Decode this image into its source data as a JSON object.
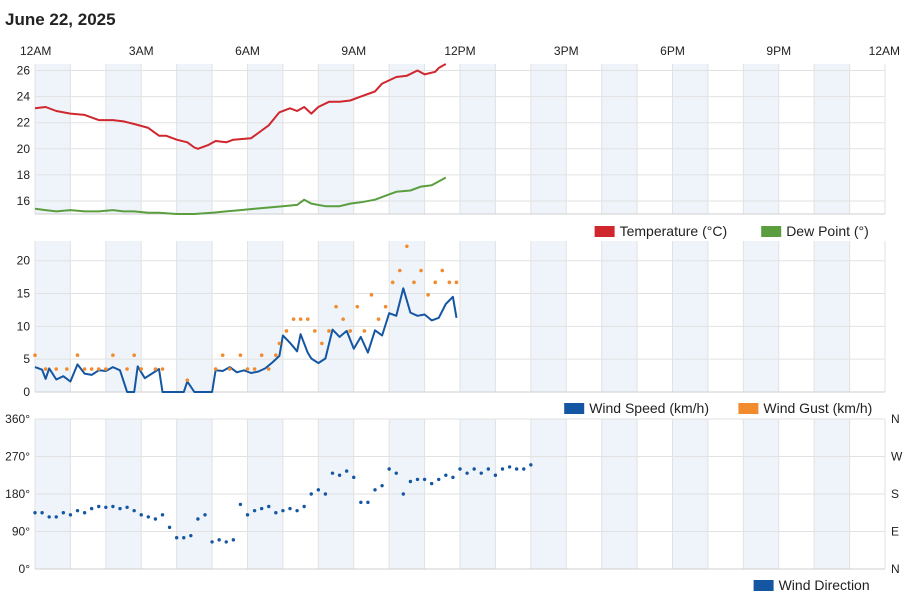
{
  "title": "June 22, 2025",
  "colors": {
    "band": "#eef4fa",
    "grid": "#e2e2e2",
    "temperature": "#d0262d",
    "dew_point": "#5a9e3f",
    "wind_speed": "#1556a3",
    "wind_gust": "#f28a2e",
    "wind_direction": "#1556a3"
  },
  "chart_data": [
    {
      "type": "line",
      "name": "temperature-dewpoint",
      "x_unit": "hours",
      "x_ticks": [
        0,
        3,
        6,
        9,
        12,
        15,
        18,
        21,
        24
      ],
      "x_tick_labels": [
        "12AM",
        "3AM",
        "6AM",
        "9AM",
        "12PM",
        "3PM",
        "6PM",
        "9PM",
        "12AM"
      ],
      "ylim": [
        15,
        26.5
      ],
      "y_ticks": [
        16,
        18,
        20,
        22,
        24,
        26
      ],
      "legend": "bottom-right",
      "series": [
        {
          "name": "Temperature (°C)",
          "color": "#d0262d",
          "points": [
            [
              0.0,
              23.1
            ],
            [
              0.3,
              23.2
            ],
            [
              0.6,
              22.9
            ],
            [
              1.0,
              22.7
            ],
            [
              1.4,
              22.6
            ],
            [
              1.8,
              22.2
            ],
            [
              2.2,
              22.2
            ],
            [
              2.5,
              22.1
            ],
            [
              2.8,
              21.9
            ],
            [
              3.2,
              21.6
            ],
            [
              3.5,
              21.0
            ],
            [
              3.7,
              21.0
            ],
            [
              4.0,
              20.7
            ],
            [
              4.3,
              20.5
            ],
            [
              4.5,
              20.1
            ],
            [
              4.6,
              20.0
            ],
            [
              4.9,
              20.3
            ],
            [
              5.1,
              20.6
            ],
            [
              5.4,
              20.5
            ],
            [
              5.6,
              20.7
            ],
            [
              6.1,
              20.8
            ],
            [
              6.4,
              21.4
            ],
            [
              6.6,
              21.8
            ],
            [
              6.9,
              22.8
            ],
            [
              7.2,
              23.1
            ],
            [
              7.4,
              22.9
            ],
            [
              7.6,
              23.2
            ],
            [
              7.8,
              22.7
            ],
            [
              8.0,
              23.2
            ],
            [
              8.3,
              23.6
            ],
            [
              8.6,
              23.6
            ],
            [
              8.9,
              23.7
            ],
            [
              9.2,
              24.0
            ],
            [
              9.4,
              24.2
            ],
            [
              9.6,
              24.4
            ],
            [
              9.8,
              25.0
            ],
            [
              10.2,
              25.5
            ],
            [
              10.5,
              25.6
            ],
            [
              10.8,
              26.0
            ],
            [
              11.0,
              25.7
            ],
            [
              11.3,
              25.9
            ],
            [
              11.4,
              26.2
            ],
            [
              11.6,
              26.5
            ]
          ]
        },
        {
          "name": "Dew Point (°)",
          "color": "#5a9e3f",
          "points": [
            [
              0.0,
              15.4
            ],
            [
              0.3,
              15.3
            ],
            [
              0.6,
              15.2
            ],
            [
              1.0,
              15.3
            ],
            [
              1.4,
              15.2
            ],
            [
              1.8,
              15.2
            ],
            [
              2.2,
              15.3
            ],
            [
              2.5,
              15.2
            ],
            [
              2.8,
              15.2
            ],
            [
              3.2,
              15.1
            ],
            [
              3.5,
              15.1
            ],
            [
              4.0,
              15.0
            ],
            [
              4.5,
              15.0
            ],
            [
              5.0,
              15.1
            ],
            [
              5.4,
              15.2
            ],
            [
              5.8,
              15.3
            ],
            [
              6.2,
              15.4
            ],
            [
              6.6,
              15.5
            ],
            [
              7.0,
              15.6
            ],
            [
              7.4,
              15.7
            ],
            [
              7.6,
              16.1
            ],
            [
              7.8,
              15.8
            ],
            [
              8.2,
              15.6
            ],
            [
              8.6,
              15.6
            ],
            [
              8.9,
              15.8
            ],
            [
              9.2,
              15.9
            ],
            [
              9.6,
              16.1
            ],
            [
              9.9,
              16.4
            ],
            [
              10.2,
              16.7
            ],
            [
              10.6,
              16.8
            ],
            [
              10.9,
              17.1
            ],
            [
              11.2,
              17.2
            ],
            [
              11.4,
              17.5
            ],
            [
              11.6,
              17.8
            ]
          ]
        }
      ]
    },
    {
      "type": "line",
      "name": "wind",
      "x_unit": "hours",
      "ylim": [
        0,
        23
      ],
      "y_ticks": [
        0,
        5,
        10,
        15,
        20
      ],
      "legend": "bottom-right",
      "series": [
        {
          "name": "Wind Speed (km/h)",
          "color": "#1556a3",
          "points": [
            [
              0.0,
              3.8
            ],
            [
              0.2,
              3.4
            ],
            [
              0.3,
              2.0
            ],
            [
              0.4,
              3.6
            ],
            [
              0.6,
              1.9
            ],
            [
              0.8,
              2.4
            ],
            [
              1.0,
              1.6
            ],
            [
              1.2,
              4.2
            ],
            [
              1.4,
              2.8
            ],
            [
              1.6,
              2.6
            ],
            [
              1.8,
              3.3
            ],
            [
              2.0,
              3.2
            ],
            [
              2.2,
              3.8
            ],
            [
              2.4,
              3.3
            ],
            [
              2.6,
              0.0
            ],
            [
              2.8,
              0.0
            ],
            [
              2.9,
              3.9
            ],
            [
              3.1,
              2.1
            ],
            [
              3.3,
              2.8
            ],
            [
              3.5,
              3.5
            ],
            [
              3.6,
              0.0
            ],
            [
              4.0,
              0.0
            ],
            [
              4.2,
              0.0
            ],
            [
              4.3,
              1.6
            ],
            [
              4.5,
              0.0
            ],
            [
              4.8,
              0.0
            ],
            [
              5.0,
              0.0
            ],
            [
              5.1,
              3.3
            ],
            [
              5.3,
              3.2
            ],
            [
              5.5,
              3.8
            ],
            [
              5.7,
              3.0
            ],
            [
              5.9,
              3.3
            ],
            [
              6.1,
              2.9
            ],
            [
              6.3,
              3.1
            ],
            [
              6.5,
              3.6
            ],
            [
              6.7,
              4.5
            ],
            [
              6.9,
              5.5
            ],
            [
              7.0,
              8.6
            ],
            [
              7.2,
              7.5
            ],
            [
              7.4,
              6.2
            ],
            [
              7.5,
              8.8
            ],
            [
              7.7,
              6.0
            ],
            [
              7.8,
              5.1
            ],
            [
              8.0,
              4.4
            ],
            [
              8.2,
              5.1
            ],
            [
              8.4,
              9.5
            ],
            [
              8.6,
              8.4
            ],
            [
              8.8,
              9.3
            ],
            [
              9.0,
              6.6
            ],
            [
              9.2,
              8.4
            ],
            [
              9.4,
              6.0
            ],
            [
              9.6,
              9.4
            ],
            [
              9.8,
              8.6
            ],
            [
              10.0,
              12.0
            ],
            [
              10.2,
              11.6
            ],
            [
              10.4,
              15.8
            ],
            [
              10.6,
              12.1
            ],
            [
              10.8,
              11.6
            ],
            [
              11.0,
              11.8
            ],
            [
              11.2,
              10.9
            ],
            [
              11.4,
              11.3
            ],
            [
              11.6,
              13.4
            ],
            [
              11.8,
              14.5
            ],
            [
              11.9,
              11.3
            ]
          ]
        },
        {
          "name": "Wind Gust (km/h)",
          "color": "#f28a2e",
          "points": [
            [
              0.0,
              5.6
            ],
            [
              0.3,
              3.5
            ],
            [
              0.6,
              3.5
            ],
            [
              0.9,
              3.5
            ],
            [
              1.2,
              5.6
            ],
            [
              1.4,
              3.5
            ],
            [
              1.6,
              3.5
            ],
            [
              1.8,
              3.5
            ],
            [
              2.0,
              3.5
            ],
            [
              2.2,
              5.6
            ],
            [
              2.6,
              3.5
            ],
            [
              2.8,
              5.6
            ],
            [
              3.0,
              3.5
            ],
            [
              3.4,
              3.5
            ],
            [
              3.6,
              3.5
            ],
            [
              4.3,
              1.8
            ],
            [
              5.1,
              3.5
            ],
            [
              5.3,
              5.6
            ],
            [
              5.5,
              3.5
            ],
            [
              5.8,
              5.6
            ],
            [
              6.0,
              3.5
            ],
            [
              6.2,
              3.5
            ],
            [
              6.4,
              5.6
            ],
            [
              6.6,
              3.5
            ],
            [
              6.8,
              5.6
            ],
            [
              6.9,
              7.4
            ],
            [
              7.1,
              9.3
            ],
            [
              7.3,
              11.1
            ],
            [
              7.5,
              11.1
            ],
            [
              7.7,
              11.1
            ],
            [
              7.9,
              9.3
            ],
            [
              8.1,
              7.4
            ],
            [
              8.3,
              9.3
            ],
            [
              8.5,
              13.0
            ],
            [
              8.7,
              11.1
            ],
            [
              8.9,
              9.3
            ],
            [
              9.1,
              13.0
            ],
            [
              9.3,
              9.3
            ],
            [
              9.5,
              14.8
            ],
            [
              9.7,
              11.1
            ],
            [
              9.9,
              13.0
            ],
            [
              10.1,
              16.7
            ],
            [
              10.3,
              18.5
            ],
            [
              10.5,
              22.2
            ],
            [
              10.7,
              16.7
            ],
            [
              10.9,
              18.5
            ],
            [
              11.1,
              14.8
            ],
            [
              11.3,
              16.7
            ],
            [
              11.5,
              18.5
            ],
            [
              11.7,
              16.7
            ],
            [
              11.9,
              16.7
            ]
          ]
        }
      ]
    },
    {
      "type": "scatter",
      "name": "wind-direction",
      "x_unit": "hours",
      "ylim": [
        0,
        360
      ],
      "y_ticks": [
        0,
        90,
        180,
        270,
        360
      ],
      "y_tick_labels": [
        "0°",
        "90°",
        "180°",
        "270°",
        "360°"
      ],
      "right_tick_labels": [
        "N",
        "E",
        "S",
        "W",
        "N"
      ],
      "legend": "bottom-right",
      "series": [
        {
          "name": "Wind Direction",
          "color": "#1556a3",
          "points": [
            [
              0.0,
              135
            ],
            [
              0.2,
              135
            ],
            [
              0.4,
              125
            ],
            [
              0.6,
              125
            ],
            [
              0.8,
              135
            ],
            [
              1.0,
              130
            ],
            [
              1.2,
              140
            ],
            [
              1.4,
              135
            ],
            [
              1.6,
              145
            ],
            [
              1.8,
              150
            ],
            [
              2.0,
              148
            ],
            [
              2.2,
              150
            ],
            [
              2.4,
              145
            ],
            [
              2.6,
              148
            ],
            [
              2.8,
              140
            ],
            [
              3.0,
              130
            ],
            [
              3.2,
              125
            ],
            [
              3.4,
              120
            ],
            [
              3.6,
              130
            ],
            [
              3.8,
              100
            ],
            [
              4.0,
              75
            ],
            [
              4.2,
              75
            ],
            [
              4.4,
              80
            ],
            [
              4.6,
              120
            ],
            [
              4.8,
              130
            ],
            [
              5.0,
              65
            ],
            [
              5.2,
              70
            ],
            [
              5.4,
              65
            ],
            [
              5.6,
              70
            ],
            [
              5.8,
              155
            ],
            [
              6.0,
              130
            ],
            [
              6.2,
              140
            ],
            [
              6.4,
              145
            ],
            [
              6.6,
              150
            ],
            [
              6.8,
              135
            ],
            [
              7.0,
              140
            ],
            [
              7.2,
              145
            ],
            [
              7.4,
              140
            ],
            [
              7.6,
              150
            ],
            [
              7.8,
              180
            ],
            [
              8.0,
              190
            ],
            [
              8.2,
              180
            ],
            [
              8.4,
              230
            ],
            [
              8.6,
              225
            ],
            [
              8.8,
              235
            ],
            [
              9.0,
              220
            ],
            [
              9.2,
              160
            ],
            [
              9.4,
              160
            ],
            [
              9.6,
              190
            ],
            [
              9.8,
              200
            ],
            [
              10.0,
              240
            ],
            [
              10.2,
              230
            ],
            [
              10.4,
              180
            ],
            [
              10.6,
              210
            ],
            [
              10.8,
              215
            ],
            [
              11.0,
              215
            ],
            [
              11.2,
              205
            ],
            [
              11.4,
              215
            ],
            [
              11.6,
              225
            ],
            [
              11.8,
              220
            ],
            [
              12.0,
              240
            ],
            [
              12.2,
              230
            ],
            [
              12.4,
              240
            ],
            [
              12.6,
              230
            ],
            [
              12.8,
              240
            ],
            [
              13.0,
              225
            ],
            [
              13.2,
              240
            ],
            [
              13.4,
              245
            ],
            [
              13.6,
              240
            ],
            [
              13.8,
              240
            ],
            [
              14.0,
              250
            ]
          ]
        }
      ]
    }
  ]
}
